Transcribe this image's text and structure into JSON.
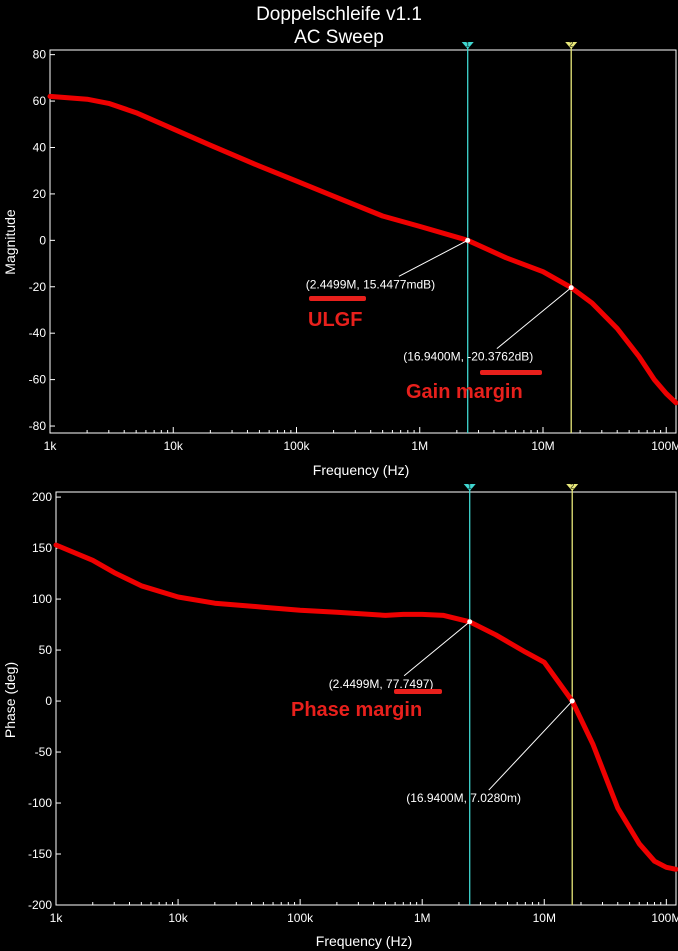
{
  "header": {
    "title": "Doppelschleife v1.1",
    "subtitle": "AC Sweep"
  },
  "colors": {
    "trace": "#ee0000",
    "cursor1": "#3fd6d0",
    "cursor2": "#e8e87a",
    "annotation": "#e8201c",
    "frame": "#ffffff"
  },
  "cursors": [
    {
      "id": "1",
      "freq": 2449900,
      "color": "#3fd6d0"
    },
    {
      "id": "2",
      "freq": 16940000,
      "color": "#e8e87a"
    }
  ],
  "chart_data": [
    {
      "type": "line",
      "xscale": "log",
      "xlabel": "Frequency (Hz)",
      "ylabel": "Magnitude",
      "xlim": [
        1000,
        120000000
      ],
      "ylim": [
        -83,
        82
      ],
      "xticks": [
        {
          "v": 1000,
          "label": "1k"
        },
        {
          "v": 10000,
          "label": "10k"
        },
        {
          "v": 100000,
          "label": "100k"
        },
        {
          "v": 1000000,
          "label": "1M"
        },
        {
          "v": 10000000,
          "label": "10M"
        },
        {
          "v": 100000000,
          "label": "100M"
        }
      ],
      "yticks": [
        80,
        60,
        40,
        20,
        0,
        -20,
        -40,
        -60,
        -80
      ],
      "series": [
        {
          "x": [
            1000,
            2000,
            3000,
            5000,
            10000,
            20000,
            50000,
            100000,
            200000,
            500000,
            1000000,
            2449900,
            5000000,
            10000000,
            16940000,
            25000000,
            40000000,
            60000000,
            80000000,
            100000000,
            120000000
          ],
          "y": [
            62,
            60.8,
            59,
            55,
            48,
            41,
            32,
            25.5,
            19,
            10.5,
            6,
            0,
            -7.5,
            -13.5,
            -20.38,
            -27,
            -38,
            -50,
            -60,
            -66,
            -70
          ]
        }
      ],
      "markers": [
        {
          "x": 2449900,
          "y": 0,
          "label": "(2.4499M, 15.4477mdB)"
        },
        {
          "x": 16940000,
          "y": -20.3762,
          "label": "(16.9400M, -20.3762dB)"
        }
      ],
      "annotations": [
        "ULGF",
        "Gain margin"
      ]
    },
    {
      "type": "line",
      "xscale": "log",
      "xlabel": "Frequency (Hz)",
      "ylabel": "Phase (deg)",
      "xlim": [
        1000,
        120000000
      ],
      "ylim": [
        -200,
        205
      ],
      "xticks": [
        {
          "v": 1000,
          "label": "1k"
        },
        {
          "v": 10000,
          "label": "10k"
        },
        {
          "v": 100000,
          "label": "100k"
        },
        {
          "v": 1000000,
          "label": "1M"
        },
        {
          "v": 10000000,
          "label": "10M"
        },
        {
          "v": 100000000,
          "label": "100M"
        }
      ],
      "yticks": [
        200,
        150,
        100,
        50,
        0,
        -50,
        -100,
        -150,
        -200
      ],
      "series": [
        {
          "x": [
            1000,
            2000,
            3000,
            5000,
            10000,
            20000,
            50000,
            100000,
            200000,
            500000,
            700000,
            1000000,
            1500000,
            2449900,
            4000000,
            7000000,
            10000000,
            16940000,
            25000000,
            40000000,
            60000000,
            80000000,
            100000000,
            120000000
          ],
          "y": [
            153,
            138,
            126,
            113,
            102,
            96,
            92,
            89,
            87,
            84,
            85,
            85,
            84,
            77.7,
            65,
            48,
            38,
            0.007,
            -42,
            -105,
            -140,
            -157,
            -163,
            -165
          ]
        }
      ],
      "markers": [
        {
          "x": 2449900,
          "y": 77.7497,
          "label": "(2.4499M, 77.7497)"
        },
        {
          "x": 16940000,
          "y": 0.007028,
          "label": "(16.9400M, 7.0280m)"
        }
      ],
      "annotations": [
        "Phase margin"
      ]
    }
  ]
}
